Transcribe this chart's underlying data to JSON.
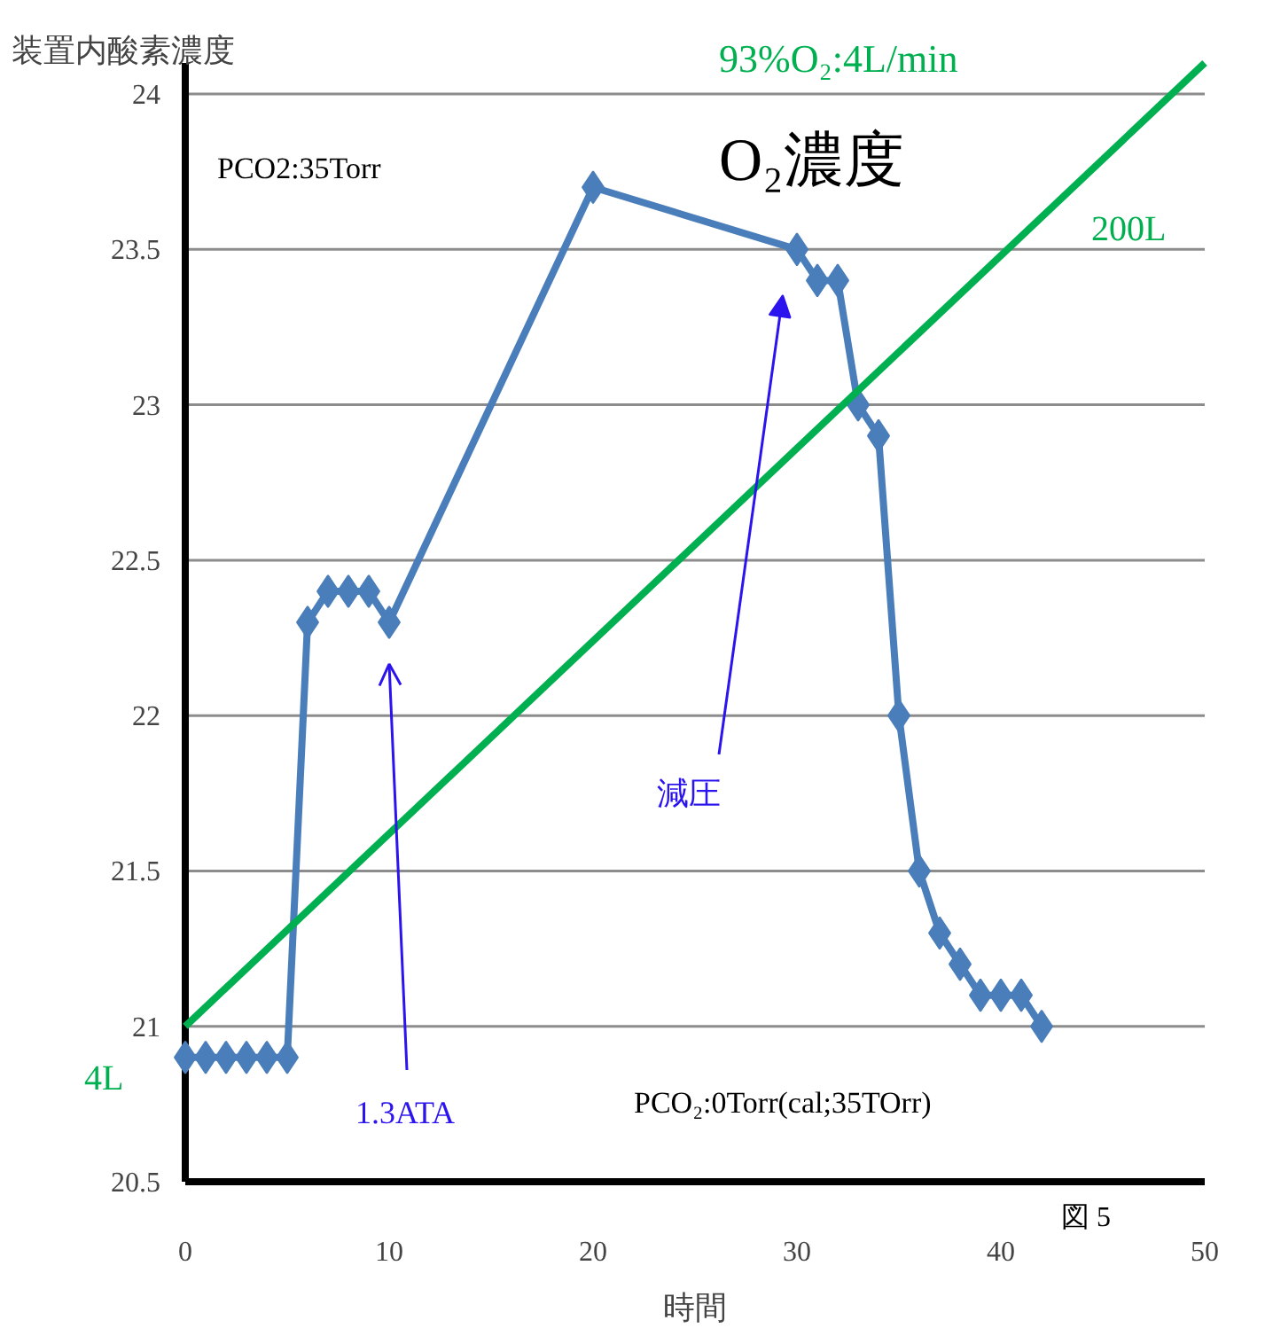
{
  "chart_data": {
    "type": "line",
    "ylabel": "装置内酸素濃度",
    "xlabel": "時間",
    "xlim": [
      0,
      50
    ],
    "xticks": [
      0,
      10,
      20,
      30,
      40,
      50
    ],
    "ylim": [
      20.5,
      24.1
    ],
    "yticks": [
      20.5,
      21,
      21.5,
      22,
      22.5,
      23,
      23.5,
      24
    ],
    "grid": "y",
    "marker": "diamond",
    "line_style": "solid",
    "series": [
      {
        "color": "#4a7ebb",
        "x": [
          0,
          1,
          2,
          3,
          4,
          5,
          6,
          7,
          8,
          9,
          10,
          20,
          30,
          31,
          32,
          33,
          34,
          35,
          36,
          37,
          38,
          39,
          40,
          41,
          42
        ],
        "values": [
          20.9,
          20.9,
          20.9,
          20.9,
          20.9,
          20.9,
          22.3,
          22.4,
          22.4,
          22.4,
          22.3,
          23.7,
          23.5,
          23.4,
          23.4,
          23.0,
          22.9,
          22.0,
          21.5,
          21.3,
          21.2,
          21.1,
          21.1,
          21.1,
          21.0
        ]
      },
      {
        "color": "#00b050",
        "x": [
          0,
          50
        ],
        "values": [
          21.0,
          24.1
        ],
        "marker": "none"
      }
    ],
    "annotations": [
      "O₂濃度",
      "PCO2:35Torr",
      "PCO₂:0Torr(cal;35TOrr)",
      "93%O₂:4L/min",
      "200L",
      "4L",
      "図 5",
      "1.3ATA",
      "減圧"
    ]
  }
}
